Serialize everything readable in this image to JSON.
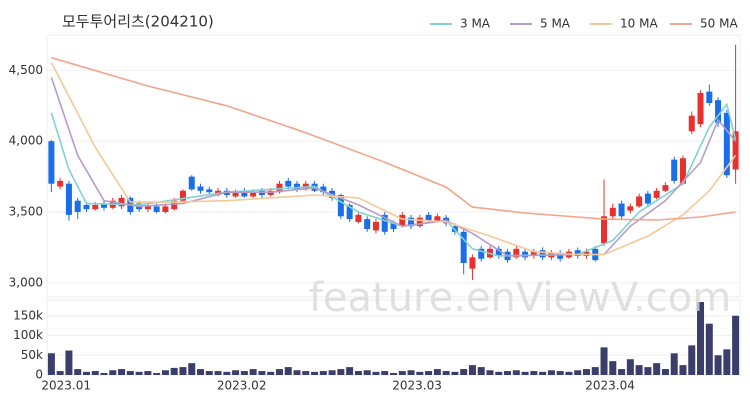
{
  "chart_data": {
    "type": "candlestick",
    "title": "모두투어리츠(204210)",
    "watermark": "feature.enViewV.com",
    "categories": [
      "2023.01",
      null,
      null,
      null,
      null,
      null,
      null,
      null,
      null,
      null,
      null,
      null,
      null,
      null,
      null,
      null,
      null,
      null,
      null,
      null,
      "2023.02",
      null,
      null,
      null,
      null,
      null,
      null,
      null,
      null,
      null,
      null,
      null,
      null,
      null,
      null,
      null,
      null,
      null,
      null,
      null,
      "2023.03",
      null,
      null,
      null,
      null,
      null,
      null,
      null,
      null,
      null,
      null,
      null,
      null,
      null,
      null,
      null,
      null,
      null,
      null,
      null,
      null,
      null,
      "2023.04",
      null,
      null,
      null,
      null,
      null,
      null,
      null,
      null,
      null,
      null,
      null,
      null,
      null,
      null,
      null,
      null
    ],
    "open": [
      4000,
      3680,
      3700,
      3580,
      3550,
      3520,
      3560,
      3530,
      3540,
      3600,
      3560,
      3520,
      3540,
      3500,
      3520,
      3580,
      3750,
      3680,
      3660,
      3620,
      3650,
      3610,
      3650,
      3610,
      3650,
      3620,
      3640,
      3720,
      3700,
      3660,
      3700,
      3680,
      3650,
      3620,
      3550,
      3430,
      3450,
      3370,
      3480,
      3420,
      3400,
      3460,
      3400,
      3480,
      3440,
      3460,
      3400,
      3360,
      3100,
      3240,
      3180,
      3240,
      3220,
      3180,
      3220,
      3190,
      3230,
      3180,
      3210,
      3180,
      3230,
      3190,
      3240,
      3280,
      3470,
      3560,
      3510,
      3540,
      3630,
      3600,
      3650,
      3870,
      3700,
      4070,
      4120,
      4350,
      4290,
      4200,
      3800
    ],
    "high": [
      4010,
      3740,
      3720,
      3600,
      3570,
      3570,
      3580,
      3600,
      3620,
      3610,
      3580,
      3560,
      3560,
      3560,
      3600,
      3660,
      3760,
      3700,
      3680,
      3670,
      3670,
      3660,
      3670,
      3660,
      3670,
      3670,
      3720,
      3740,
      3720,
      3720,
      3720,
      3700,
      3670,
      3630,
      3560,
      3500,
      3470,
      3450,
      3500,
      3440,
      3500,
      3480,
      3480,
      3500,
      3490,
      3480,
      3420,
      3380,
      3200,
      3260,
      3260,
      3260,
      3240,
      3260,
      3240,
      3240,
      3250,
      3230,
      3230,
      3240,
      3250,
      3240,
      3260,
      3730,
      3560,
      3580,
      3560,
      3630,
      3650,
      3670,
      3710,
      3890,
      3900,
      4210,
      4360,
      4400,
      4310,
      4220,
      4680
    ],
    "low": [
      3640,
      3660,
      3440,
      3450,
      3500,
      3510,
      3510,
      3520,
      3520,
      3480,
      3500,
      3500,
      3490,
      3490,
      3510,
      3570,
      3650,
      3630,
      3620,
      3610,
      3600,
      3600,
      3600,
      3600,
      3600,
      3610,
      3630,
      3660,
      3640,
      3650,
      3640,
      3620,
      3580,
      3450,
      3430,
      3420,
      3360,
      3350,
      3340,
      3360,
      3390,
      3380,
      3390,
      3420,
      3430,
      3400,
      3340,
      3060,
      3020,
      3150,
      3170,
      3170,
      3140,
      3170,
      3160,
      3170,
      3160,
      3160,
      3150,
      3170,
      3170,
      3170,
      3150,
      3260,
      3450,
      3450,
      3490,
      3530,
      3540,
      3590,
      3640,
      3700,
      3690,
      4050,
      4100,
      4250,
      4100,
      3740,
      3700
    ],
    "close": [
      3700,
      3720,
      3480,
      3500,
      3520,
      3550,
      3530,
      3580,
      3600,
      3500,
      3520,
      3540,
      3500,
      3540,
      3580,
      3650,
      3660,
      3650,
      3640,
      3650,
      3620,
      3640,
      3610,
      3640,
      3620,
      3650,
      3700,
      3680,
      3660,
      3700,
      3650,
      3640,
      3600,
      3470,
      3450,
      3480,
      3380,
      3430,
      3360,
      3380,
      3480,
      3400,
      3460,
      3440,
      3470,
      3420,
      3360,
      3140,
      3180,
      3170,
      3240,
      3190,
      3160,
      3240,
      3180,
      3220,
      3180,
      3210,
      3170,
      3220,
      3190,
      3220,
      3160,
      3470,
      3530,
      3470,
      3540,
      3610,
      3560,
      3650,
      3690,
      3720,
      3880,
      4180,
      4340,
      4270,
      4130,
      3760,
      4070
    ],
    "volume": [
      55000,
      10000,
      62000,
      15000,
      8000,
      10000,
      5000,
      12000,
      15000,
      10000,
      8000,
      10000,
      5000,
      12000,
      18000,
      20000,
      30000,
      15000,
      10000,
      10000,
      8000,
      12000,
      10000,
      15000,
      10000,
      8000,
      15000,
      20000,
      12000,
      10000,
      8000,
      10000,
      12000,
      15000,
      20000,
      10000,
      12000,
      8000,
      10000,
      5000,
      10000,
      12000,
      8000,
      10000,
      15000,
      10000,
      8000,
      15000,
      25000,
      20000,
      12000,
      8000,
      10000,
      12000,
      8000,
      10000,
      8000,
      12000,
      10000,
      8000,
      12000,
      15000,
      20000,
      70000,
      35000,
      15000,
      40000,
      25000,
      20000,
      30000,
      15000,
      55000,
      25000,
      75000,
      185000,
      130000,
      50000,
      65000,
      150000
    ],
    "up_color": "#e8312f",
    "down_color": "#1a6ee8",
    "volume_color": "#3b3d6b",
    "ylim": [
      2900,
      4750
    ],
    "yticks": [
      {
        "value": 3000,
        "label": "3,000"
      },
      {
        "value": 3500,
        "label": "3,500"
      },
      {
        "value": 4000,
        "label": "4,000"
      },
      {
        "value": 4500,
        "label": "4,500"
      }
    ],
    "volume_ylim": [
      0,
      190000
    ],
    "volume_ticks": [
      0,
      {
        "value": 50000,
        "label": "50k"
      },
      {
        "value": 100000,
        "label": "100k"
      },
      {
        "value": 150000,
        "label": "150k"
      }
    ],
    "grid": true,
    "series": [
      {
        "name": "3 MA",
        "color": "#7fd3d0",
        "x": [
          0,
          2,
          4,
          10,
          20,
          30,
          35,
          40,
          45,
          48,
          51,
          60,
          64,
          67,
          72,
          75,
          77,
          78
        ],
        "values": [
          4200,
          3800,
          3560,
          3550,
          3640,
          3680,
          3500,
          3400,
          3440,
          3240,
          3190,
          3200,
          3300,
          3500,
          3700,
          4100,
          4260,
          4010
        ]
      },
      {
        "name": "5 MA",
        "color": "#b59cc9",
        "x": [
          0,
          3,
          6,
          10,
          15,
          20,
          25,
          30,
          35,
          40,
          45,
          48,
          52,
          60,
          63,
          66,
          70,
          74,
          76,
          78
        ],
        "values": [
          4450,
          3900,
          3580,
          3540,
          3560,
          3640,
          3640,
          3670,
          3550,
          3400,
          3440,
          3350,
          3190,
          3200,
          3200,
          3400,
          3580,
          3850,
          4150,
          4000
        ]
      },
      {
        "name": "10 MA",
        "color": "#f5c897",
        "x": [
          0,
          5,
          9,
          14,
          20,
          30,
          35,
          40,
          45,
          50,
          55,
          60,
          63,
          68,
          72,
          75,
          78
        ],
        "values": [
          4556,
          3958,
          3570,
          3570,
          3580,
          3620,
          3600,
          3450,
          3430,
          3330,
          3220,
          3200,
          3200,
          3330,
          3480,
          3650,
          3900
        ]
      },
      {
        "name": "50 MA",
        "color": "#f4a48a",
        "x": [
          0,
          11,
          20,
          29,
          38,
          45,
          48,
          54,
          63,
          69,
          74,
          78
        ],
        "values": [
          4590,
          4390,
          4250,
          4060,
          3852,
          3676,
          3535,
          3493,
          3450,
          3444,
          3465,
          3500
        ]
      }
    ]
  }
}
